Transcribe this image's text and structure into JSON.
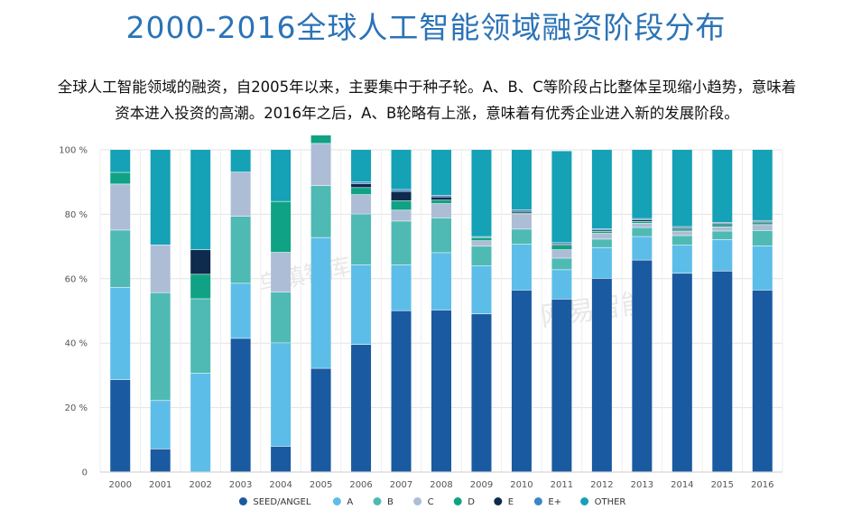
{
  "page": {
    "title": "2000-2016全球人工智能领域融资阶段分布",
    "description_line1": "全球人工智能领域的融资，自2005年以来，主要集中于种子轮。A、B、C等阶段占比整体呈现缩小趋势，意味着",
    "description_line2": "资本进入投资的高潮。2016年之后，A、B轮略有上涨，意味着有优秀企业进入新的发展阶段。"
  },
  "chart_data": {
    "type": "bar",
    "stacked": true,
    "categories": [
      "2000",
      "2001",
      "2002",
      "2003",
      "2004",
      "2005",
      "2006",
      "2007",
      "2008",
      "2009",
      "2010",
      "2011",
      "2012",
      "2013",
      "2014",
      "2015",
      "2016"
    ],
    "y_ticks": [
      "0",
      "20 %",
      "40 %",
      "60 %",
      "80 %",
      "100 %"
    ],
    "ylim": [
      0,
      100
    ],
    "grid": true,
    "legend_position": "bottom",
    "series": [
      {
        "name": "SEED/ANGEL",
        "color": "#1a5aa0",
        "values": [
          28.6,
          7.1,
          0,
          41.4,
          7.9,
          32.1,
          39.5,
          50.0,
          50.2,
          49.0,
          56.4,
          53.6,
          60.0,
          65.7,
          61.6,
          62.3,
          56.4
        ]
      },
      {
        "name": "A",
        "color": "#5dbde9",
        "values": [
          28.6,
          15.0,
          30.6,
          17.1,
          32.1,
          40.6,
          24.7,
          14.2,
          17.8,
          14.9,
          14.2,
          9.1,
          9.6,
          7.3,
          8.7,
          9.8,
          13.7
        ]
      },
      {
        "name": "B",
        "color": "#4fbab3",
        "values": [
          17.8,
          33.5,
          23.1,
          20.8,
          15.8,
          16.1,
          15.8,
          13.6,
          10.8,
          6.1,
          4.7,
          3.6,
          2.6,
          2.8,
          3.0,
          2.6,
          4.8
        ]
      },
      {
        "name": "C",
        "color": "#aebdd6",
        "values": [
          14.3,
          14.8,
          0,
          13.7,
          12.3,
          13.1,
          6.0,
          3.4,
          4.4,
          1.7,
          4.7,
          2.6,
          1.8,
          1.3,
          1.4,
          1.3,
          1.8
        ]
      },
      {
        "name": "D",
        "color": "#10a284",
        "values": [
          3.6,
          0,
          7.6,
          0,
          15.8,
          2.9,
          2.2,
          2.9,
          1.1,
          1.0,
          0.3,
          1.4,
          0.6,
          0.6,
          0.6,
          0.7,
          0.6
        ]
      },
      {
        "name": "E",
        "color": "#0e2a4c",
        "values": [
          0,
          0,
          7.6,
          0,
          0,
          0,
          1.2,
          2.9,
          1.0,
          0,
          0.5,
          0.4,
          0.4,
          0.5,
          0.4,
          0.4,
          0.4
        ]
      },
      {
        "name": "E+",
        "color": "#3b86c4",
        "values": [
          0,
          0,
          0,
          0,
          0,
          0,
          0.5,
          0.6,
          0.5,
          0.3,
          0.5,
          0.4,
          0.4,
          0.4,
          0.4,
          0.3,
          0.3
        ]
      },
      {
        "name": "OTHER",
        "color": "#15a1b6",
        "values": [
          7.1,
          29.6,
          31.1,
          7.0,
          16.1,
          5.2,
          10.1,
          12.4,
          14.2,
          27.0,
          18.7,
          28.5,
          24.6,
          21.4,
          23.9,
          22.6,
          22.0
        ]
      }
    ]
  },
  "watermark": {
    "text1": "乌镇智库",
    "text2": "网易智能"
  }
}
